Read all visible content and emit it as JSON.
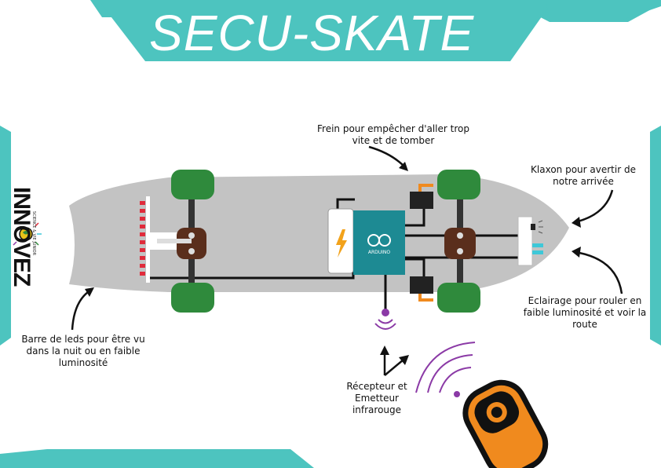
{
  "title": "SECU-SKATE",
  "logo": {
    "name": "INNOVEZ",
    "tagline": "SCIENCE & VIE JUNIOR"
  },
  "arduino": {
    "label": "ARDUINO"
  },
  "annotations": {
    "brake": "Frein pour empêcher d'aller trop vite et de tomber",
    "horn": "Klaxon pour avertir de notre arrivée",
    "lighting": "Eclairage pour rouler en faible luminosité et voir la route",
    "ledbar": "Barre de leds pour être vu dans la nuit ou en faible luminosité",
    "ir": "Récepteur et Emetteur infrarouge"
  },
  "colors": {
    "teal": "#4dc4bf",
    "deck": "#c3c3c3",
    "wheel": "#2f8a3c",
    "arduino": "#1d8a93",
    "remote": "#f08a1e",
    "led": "#e02b3b",
    "ir": "#8b3aa6"
  }
}
